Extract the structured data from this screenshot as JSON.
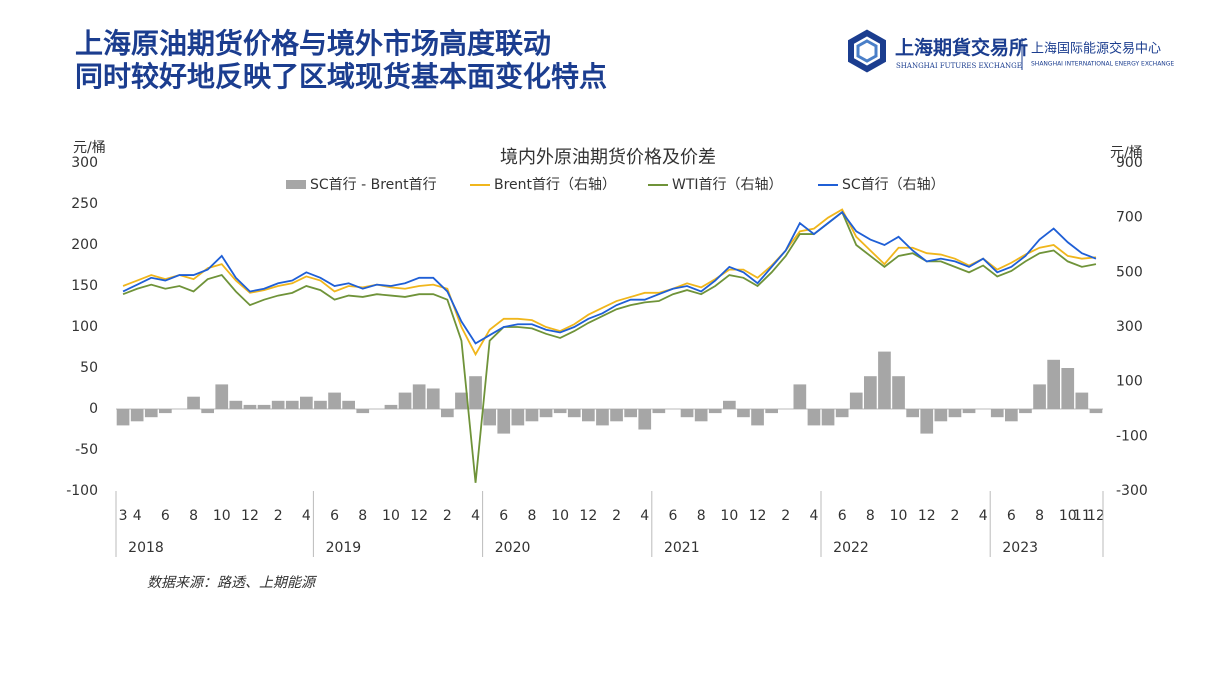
{
  "header": {
    "title_lines": [
      "上海原油期货价格与境外市场高度联动",
      "同时较好地反映了区域现货基本面变化特点"
    ],
    "logo_cn": "上海期貨交易所",
    "logo_en": "SHANGHAI FUTURES EXCHANGE",
    "logo2_cn": "上海国际能源交易中心",
    "logo2_en": "SHANGHAI INTERNATIONAL ENERGY EXCHANGE"
  },
  "chart_data": {
    "type": "combo",
    "title": "境内外原油期货价格及价差",
    "y_unit": "元/桶",
    "y2_unit": "元/桶",
    "categories": [
      "3",
      "4",
      null,
      "6",
      null,
      "8",
      null,
      "10",
      null,
      "12",
      null,
      "2",
      null,
      "4",
      null,
      "6",
      null,
      "8",
      null,
      "10",
      null,
      "12",
      null,
      "2",
      null,
      "4",
      null,
      "6",
      null,
      "8",
      null,
      "10",
      null,
      "12",
      null,
      "2",
      null,
      "4",
      null,
      "6",
      null,
      "8",
      null,
      "10",
      null,
      "12",
      null,
      "2",
      null,
      "4",
      null,
      "6",
      null,
      "8",
      null,
      "10",
      null,
      "12",
      null,
      "2",
      null,
      "4",
      null,
      "6",
      null,
      "8",
      null,
      "10",
      "11",
      "12"
    ],
    "x_groups": [
      {
        "label": "2018",
        "count": 14
      },
      {
        "label": "2019",
        "count": 12
      },
      {
        "label": "2020",
        "count": 12
      },
      {
        "label": "2021",
        "count": 12
      },
      {
        "label": "2022",
        "count": 12
      },
      {
        "label": "2023",
        "count": 8
      }
    ],
    "ylim": [
      -100,
      300
    ],
    "yticks": [
      -100,
      -50,
      0,
      50,
      100,
      150,
      200,
      250,
      300
    ],
    "y2lim": [
      -300,
      900
    ],
    "y2ticks": [
      -300,
      -100,
      100,
      300,
      500,
      700,
      900
    ],
    "series": [
      {
        "name": "SC首行 - Brent首行",
        "type": "bar",
        "color": "#a6a6a6",
        "values": [
          -20,
          -15,
          -10,
          -5,
          0,
          15,
          -5,
          30,
          10,
          5,
          5,
          10,
          10,
          15,
          10,
          20,
          10,
          -5,
          0,
          5,
          20,
          30,
          25,
          -10,
          20,
          40,
          -20,
          -30,
          -20,
          -15,
          -10,
          -5,
          -10,
          -15,
          -20,
          -15,
          -10,
          -25,
          -5,
          0,
          -10,
          -15,
          -5,
          10,
          -10,
          -20,
          -5,
          0,
          30,
          -20,
          -20,
          -10,
          20,
          40,
          70,
          40,
          -10,
          -30,
          -15,
          -10,
          -5,
          0,
          -10,
          -15,
          -5,
          30,
          60,
          50,
          20,
          -5
        ]
      },
      {
        "name": "Brent首行（右轴）",
        "type": "line",
        "axis": "y2",
        "color": "#f0b61c",
        "values": [
          450,
          470,
          490,
          475,
          490,
          475,
          515,
          530,
          470,
          425,
          435,
          450,
          460,
          485,
          470,
          430,
          450,
          445,
          455,
          445,
          440,
          450,
          455,
          440,
          300,
          200,
          290,
          330,
          330,
          325,
          300,
          285,
          310,
          345,
          370,
          395,
          410,
          425,
          425,
          440,
          460,
          445,
          475,
          510,
          510,
          480,
          525,
          580,
          650,
          660,
          700,
          730,
          630,
          580,
          530,
          590,
          590,
          570,
          565,
          550,
          525,
          550,
          510,
          535,
          565,
          590,
          600,
          560,
          550,
          555
        ]
      },
      {
        "name": "WTI首行（右轴）",
        "type": "line",
        "axis": "y2",
        "color": "#6f9339",
        "values": [
          420,
          440,
          455,
          440,
          450,
          430,
          475,
          490,
          430,
          380,
          400,
          415,
          425,
          450,
          435,
          400,
          415,
          410,
          420,
          415,
          410,
          420,
          420,
          400,
          250,
          -270,
          250,
          300,
          300,
          295,
          275,
          260,
          285,
          315,
          340,
          365,
          380,
          390,
          395,
          420,
          435,
          420,
          450,
          490,
          480,
          450,
          500,
          560,
          640,
          640,
          680,
          720,
          600,
          560,
          520,
          560,
          570,
          540,
          540,
          520,
          500,
          525,
          485,
          505,
          540,
          570,
          580,
          540,
          520,
          530
        ]
      },
      {
        "name": "SC首行（右轴）",
        "type": "line",
        "axis": "y2",
        "color": "#1f5fd6",
        "values": [
          430,
          455,
          480,
          470,
          490,
          490,
          510,
          560,
          480,
          430,
          440,
          460,
          470,
          500,
          480,
          450,
          460,
          440,
          455,
          450,
          460,
          480,
          480,
          430,
          320,
          240,
          270,
          300,
          310,
          310,
          290,
          280,
          300,
          330,
          350,
          380,
          400,
          400,
          420,
          440,
          450,
          430,
          470,
          520,
          500,
          460,
          520,
          580,
          680,
          640,
          680,
          720,
          650,
          620,
          600,
          630,
          580,
          540,
          550,
          540,
          520,
          550,
          500,
          520,
          560,
          620,
          660,
          610,
          570,
          550
        ]
      }
    ]
  },
  "source": "数据来源：路透、上期能源"
}
